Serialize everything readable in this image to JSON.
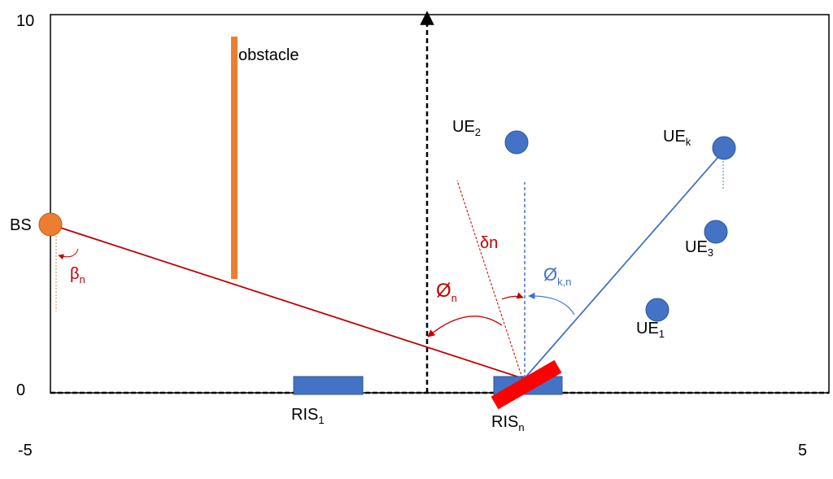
{
  "axes": {
    "y_top": "10",
    "y_bottom": "0",
    "x_left": "-5",
    "x_right": "5"
  },
  "colors": {
    "node_blue": "#4472c4",
    "bs_orange": "#ed7d31",
    "obstacle_orange": "#ed7d31",
    "ris_active_red": "#ff0000",
    "path_red": "#c00000",
    "path_blue": "#4472c4"
  },
  "labels": {
    "obstacle": "obstacle",
    "bs": "BS",
    "ue2": {
      "main": "UE",
      "sub": "2"
    },
    "uek": {
      "main": "UE",
      "sub": "k"
    },
    "ue3": {
      "main": "UE",
      "sub": "3"
    },
    "ue1": {
      "main": "UE",
      "sub": "1"
    },
    "ris1": {
      "main": "RIS",
      "sub": "1"
    },
    "risn": {
      "main": "RIS",
      "sub": "n"
    },
    "beta": {
      "main": "β",
      "sub": "n"
    },
    "delta": "δn",
    "phi": {
      "main": "Ø",
      "sub": "n"
    },
    "phi_kn": {
      "main": "Ø",
      "sub": "k,n"
    }
  }
}
